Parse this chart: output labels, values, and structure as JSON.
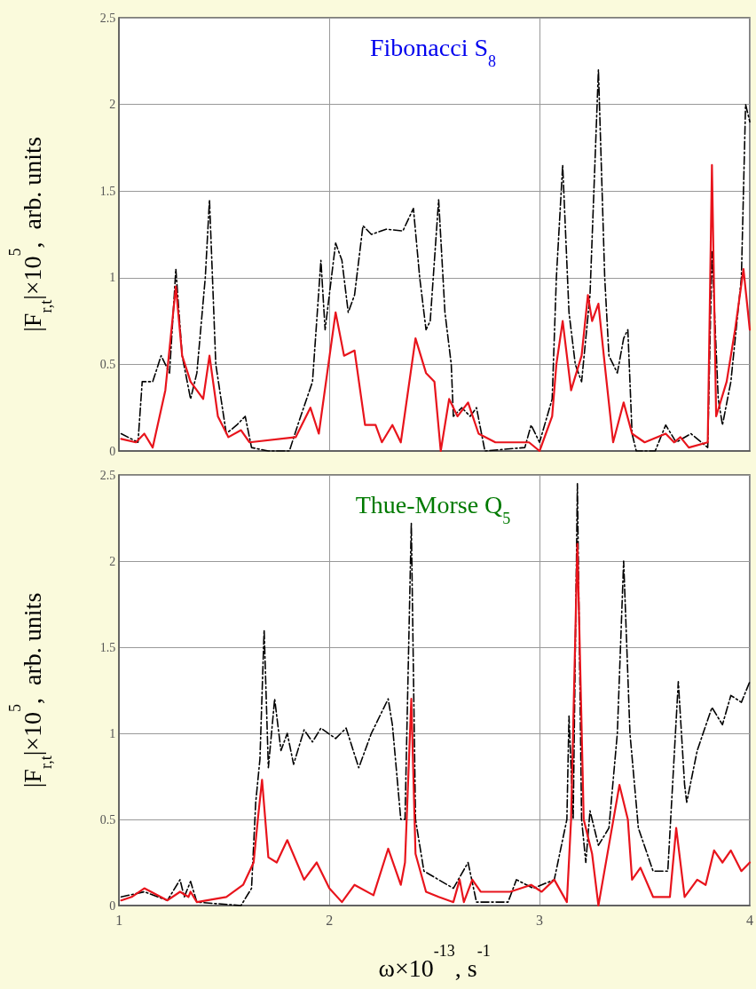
{
  "chart_data": [
    {
      "type": "line",
      "title": "Fibonacci S$_{8}$",
      "ylabel": "|F$_{r,t}$|×10$^{5}$,  arb. units",
      "xlim": [
        1,
        4
      ],
      "xticks": [
        1,
        2,
        3,
        4
      ],
      "ylim": [
        0,
        2.5
      ],
      "yticks": [
        0,
        0.5,
        1,
        1.5,
        2,
        2.5
      ],
      "grid": true,
      "tick_labels": "y",
      "marker": "none",
      "series": [
        {
          "color": "#000000",
          "line_style": "dashed",
          "x": [
            1.01,
            1.09,
            1.11,
            1.16,
            1.2,
            1.24,
            1.27,
            1.3,
            1.34,
            1.37,
            1.41,
            1.43,
            1.46,
            1.51,
            1.56,
            1.6,
            1.63,
            1.71,
            1.81,
            1.85,
            1.92,
            1.96,
            1.98,
            2.03,
            2.06,
            2.09,
            2.12,
            2.16,
            2.2,
            2.27,
            2.35,
            2.4,
            2.43,
            2.46,
            2.48,
            2.52,
            2.55,
            2.58,
            2.59,
            2.63,
            2.67,
            2.7,
            2.74,
            2.93,
            2.96,
            3.0,
            3.06,
            3.08,
            3.11,
            3.14,
            3.17,
            3.2,
            3.24,
            3.28,
            3.31,
            3.33,
            3.37,
            3.4,
            3.42,
            3.44,
            3.46,
            3.55,
            3.6,
            3.65,
            3.72,
            3.8,
            3.82,
            3.85,
            3.87,
            3.91,
            3.96,
            3.98,
            4.0
          ],
          "values": [
            0.1,
            0.05,
            0.4,
            0.4,
            0.55,
            0.45,
            1.05,
            0.55,
            0.3,
            0.45,
            1.0,
            1.45,
            0.5,
            0.1,
            0.15,
            0.2,
            0.02,
            0.0,
            0.0,
            0.15,
            0.4,
            1.1,
            0.7,
            1.2,
            1.1,
            0.8,
            0.9,
            1.3,
            1.25,
            1.28,
            1.27,
            1.4,
            1.0,
            0.7,
            0.75,
            1.45,
            0.8,
            0.5,
            0.2,
            0.25,
            0.2,
            0.25,
            0.0,
            0.02,
            0.15,
            0.05,
            0.3,
            1.0,
            1.65,
            0.8,
            0.5,
            0.4,
            0.9,
            2.2,
            1.0,
            0.55,
            0.45,
            0.65,
            0.7,
            0.1,
            0.0,
            0.0,
            0.15,
            0.05,
            0.1,
            0.02,
            1.15,
            0.3,
            0.15,
            0.4,
            1.0,
            2.0,
            1.9
          ]
        },
        {
          "color": "#e8141c",
          "line_style": "solid",
          "x": [
            1.01,
            1.08,
            1.12,
            1.16,
            1.22,
            1.27,
            1.3,
            1.34,
            1.4,
            1.43,
            1.47,
            1.52,
            1.58,
            1.62,
            1.84,
            1.91,
            1.95,
            2.03,
            2.07,
            2.12,
            2.17,
            2.22,
            2.25,
            2.3,
            2.34,
            2.41,
            2.46,
            2.5,
            2.53,
            2.57,
            2.61,
            2.66,
            2.71,
            2.79,
            2.95,
            3.0,
            3.06,
            3.08,
            3.11,
            3.15,
            3.2,
            3.23,
            3.25,
            3.28,
            3.31,
            3.35,
            3.4,
            3.44,
            3.5,
            3.6,
            3.64,
            3.67,
            3.71,
            3.8,
            3.82,
            3.84,
            3.89,
            3.93,
            3.97,
            4.0
          ],
          "values": [
            0.07,
            0.05,
            0.1,
            0.02,
            0.35,
            0.95,
            0.55,
            0.4,
            0.3,
            0.55,
            0.2,
            0.08,
            0.12,
            0.05,
            0.08,
            0.25,
            0.1,
            0.8,
            0.55,
            0.58,
            0.15,
            0.15,
            0.05,
            0.15,
            0.05,
            0.65,
            0.45,
            0.4,
            0.0,
            0.3,
            0.2,
            0.28,
            0.1,
            0.05,
            0.05,
            0.0,
            0.2,
            0.5,
            0.75,
            0.35,
            0.55,
            0.9,
            0.75,
            0.85,
            0.5,
            0.05,
            0.28,
            0.1,
            0.05,
            0.1,
            0.05,
            0.08,
            0.02,
            0.05,
            1.65,
            0.2,
            0.4,
            0.7,
            1.05,
            0.7
          ]
        }
      ]
    },
    {
      "type": "line",
      "title": "Thue-Morse Q$_{5}$",
      "xlabel": "ω×10$^{-13}$, s$^{-1}$",
      "ylabel": "|F$_{r,t}$|×10$^{5}$,  arb. units",
      "xlim": [
        1,
        4
      ],
      "xticks": [
        1,
        2,
        3,
        4
      ],
      "ylim": [
        0,
        2.5
      ],
      "yticks": [
        0,
        0.5,
        1,
        1.5,
        2,
        2.5
      ],
      "grid": true,
      "marker": "none",
      "series": [
        {
          "color": "#000000",
          "line_style": "dashed",
          "x": [
            1.01,
            1.12,
            1.23,
            1.29,
            1.31,
            1.34,
            1.37,
            1.58,
            1.63,
            1.65,
            1.67,
            1.69,
            1.7,
            1.71,
            1.74,
            1.77,
            1.8,
            1.83,
            1.88,
            1.92,
            1.96,
            2.03,
            2.08,
            2.14,
            2.2,
            2.28,
            2.3,
            2.34,
            2.36,
            2.39,
            2.41,
            2.45,
            2.59,
            2.66,
            2.7,
            2.85,
            2.89,
            2.97,
            3.07,
            3.13,
            3.14,
            3.16,
            3.18,
            3.2,
            3.22,
            3.24,
            3.28,
            3.33,
            3.37,
            3.4,
            3.43,
            3.47,
            3.54,
            3.61,
            3.66,
            3.69,
            3.7,
            3.75,
            3.82,
            3.87,
            3.91,
            3.96,
            4.0
          ],
          "values": [
            0.05,
            0.08,
            0.03,
            0.15,
            0.05,
            0.14,
            0.02,
            0.0,
            0.1,
            0.6,
            0.85,
            1.6,
            1.2,
            0.8,
            1.2,
            0.9,
            1.0,
            0.82,
            1.02,
            0.95,
            1.03,
            0.97,
            1.03,
            0.8,
            1.0,
            1.2,
            1.05,
            0.5,
            0.5,
            2.22,
            0.5,
            0.2,
            0.1,
            0.25,
            0.02,
            0.02,
            0.15,
            0.1,
            0.15,
            0.5,
            1.1,
            0.5,
            2.45,
            0.5,
            0.25,
            0.55,
            0.35,
            0.45,
            1.0,
            2.0,
            1.0,
            0.45,
            0.2,
            0.2,
            1.3,
            0.7,
            0.6,
            0.9,
            1.15,
            1.05,
            1.22,
            1.18,
            1.3
          ]
        },
        {
          "color": "#e8141c",
          "line_style": "solid",
          "x": [
            1.01,
            1.06,
            1.12,
            1.23,
            1.29,
            1.33,
            1.34,
            1.37,
            1.51,
            1.59,
            1.64,
            1.66,
            1.68,
            1.71,
            1.75,
            1.8,
            1.88,
            1.94,
            2.0,
            2.06,
            2.12,
            2.21,
            2.28,
            2.34,
            2.36,
            2.39,
            2.41,
            2.46,
            2.52,
            2.59,
            2.62,
            2.64,
            2.68,
            2.72,
            2.86,
            2.96,
            3.01,
            3.07,
            3.13,
            3.15,
            3.18,
            3.21,
            3.25,
            3.28,
            3.33,
            3.38,
            3.42,
            3.44,
            3.48,
            3.54,
            3.62,
            3.65,
            3.69,
            3.75,
            3.79,
            3.83,
            3.87,
            3.91,
            3.96,
            4.0
          ],
          "values": [
            0.03,
            0.05,
            0.1,
            0.03,
            0.08,
            0.05,
            0.08,
            0.02,
            0.05,
            0.12,
            0.25,
            0.5,
            0.73,
            0.28,
            0.25,
            0.38,
            0.15,
            0.25,
            0.1,
            0.02,
            0.12,
            0.06,
            0.33,
            0.12,
            0.25,
            1.2,
            0.3,
            0.08,
            0.05,
            0.02,
            0.15,
            0.02,
            0.15,
            0.08,
            0.08,
            0.12,
            0.08,
            0.15,
            0.02,
            0.5,
            2.1,
            0.5,
            0.3,
            0.0,
            0.35,
            0.7,
            0.5,
            0.15,
            0.22,
            0.05,
            0.05,
            0.45,
            0.05,
            0.15,
            0.12,
            0.32,
            0.25,
            0.32,
            0.2,
            0.25
          ]
        }
      ]
    }
  ]
}
